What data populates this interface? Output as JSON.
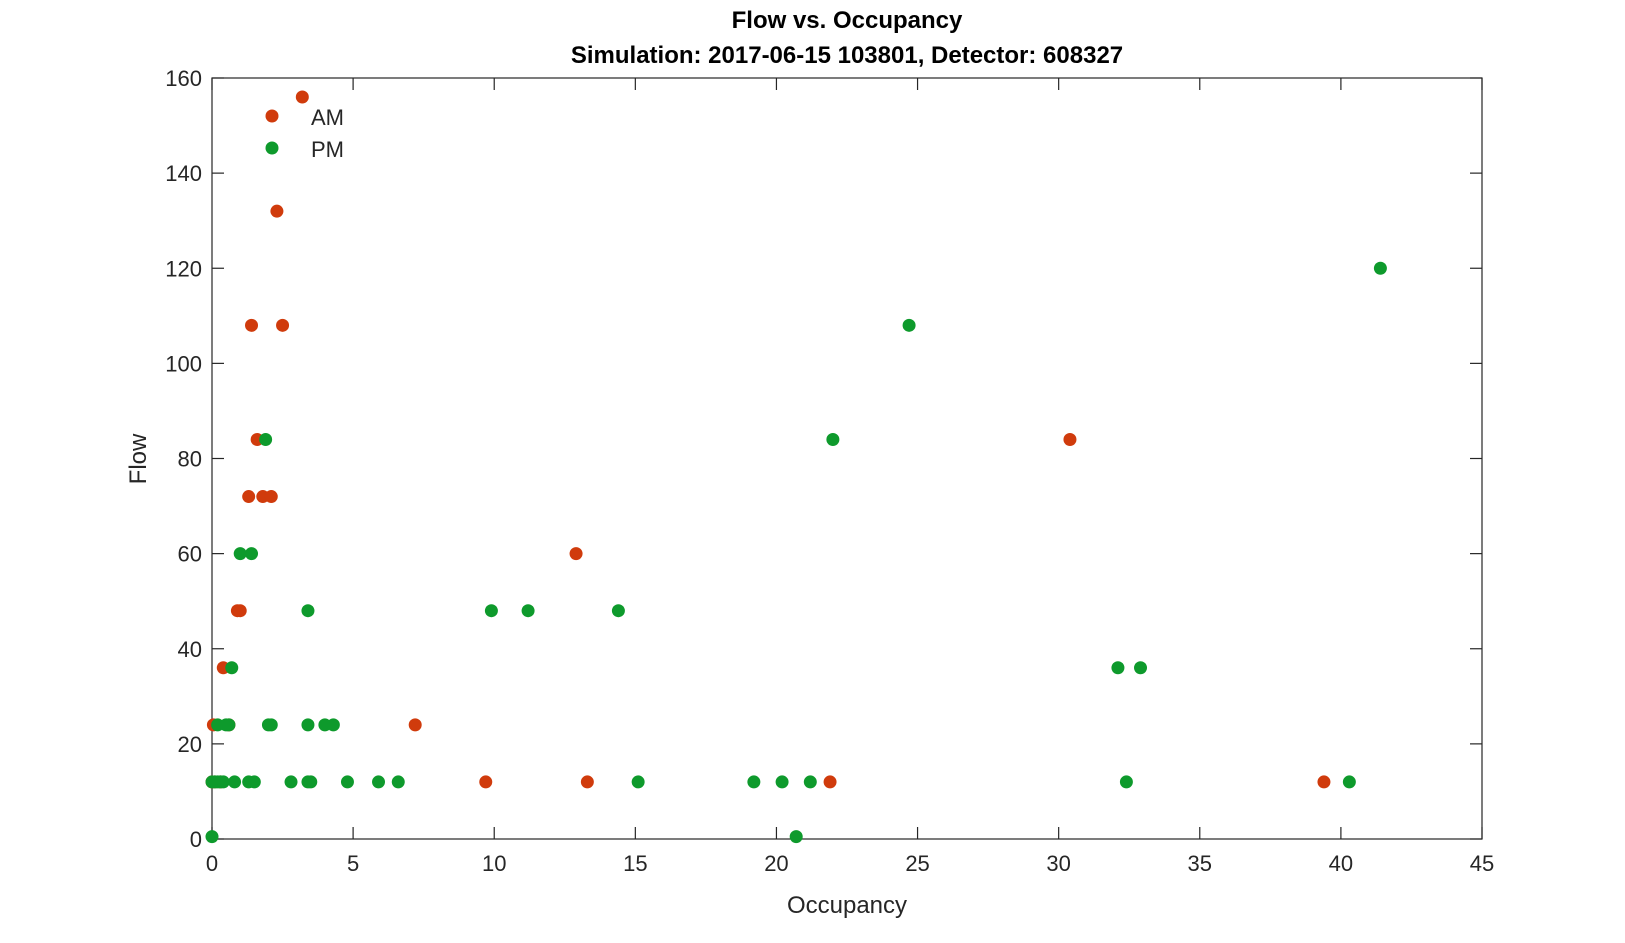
{
  "chart_data": {
    "type": "scatter",
    "title": "Flow vs. Occupancy",
    "subtitle": "Simulation:  2017-06-15 103801,  Detector:  608327",
    "xlabel": "Occupancy",
    "ylabel": "Flow",
    "xlim": [
      0,
      45
    ],
    "ylim": [
      0,
      160
    ],
    "xticks": [
      0,
      5,
      10,
      15,
      20,
      25,
      30,
      35,
      40,
      45
    ],
    "yticks": [
      0,
      20,
      40,
      60,
      80,
      100,
      120,
      140,
      160
    ],
    "xtick_labels": [
      "0",
      "5",
      "10",
      "15",
      "20",
      "25",
      "30",
      "35",
      "40",
      "45"
    ],
    "ytick_labels": [
      "0",
      "20",
      "40",
      "60",
      "80",
      "100",
      "120",
      "140",
      "160"
    ],
    "grid": false,
    "legend_position": "top-left",
    "series": [
      {
        "name": "AM",
        "color": "#d03b0c",
        "points": [
          [
            3.2,
            156
          ],
          [
            2.3,
            132
          ],
          [
            1.4,
            108
          ],
          [
            2.5,
            108
          ],
          [
            1.6,
            84
          ],
          [
            30.4,
            84
          ],
          [
            1.3,
            72
          ],
          [
            1.8,
            72
          ],
          [
            2.1,
            72
          ],
          [
            12.9,
            60
          ],
          [
            0.9,
            48
          ],
          [
            1.0,
            48
          ],
          [
            0.4,
            36
          ],
          [
            0.05,
            24
          ],
          [
            0.6,
            24
          ],
          [
            7.2,
            24
          ],
          [
            0.0,
            12
          ],
          [
            0.1,
            12
          ],
          [
            0.3,
            12
          ],
          [
            9.7,
            12
          ],
          [
            13.3,
            12
          ],
          [
            21.9,
            12
          ],
          [
            39.4,
            12
          ]
        ]
      },
      {
        "name": "PM",
        "color": "#0e9a2c",
        "points": [
          [
            41.4,
            120
          ],
          [
            24.7,
            108
          ],
          [
            1.9,
            84
          ],
          [
            22.0,
            84
          ],
          [
            1.0,
            60
          ],
          [
            1.4,
            60
          ],
          [
            3.4,
            48
          ],
          [
            9.9,
            48
          ],
          [
            11.2,
            48
          ],
          [
            14.4,
            48
          ],
          [
            0.7,
            36
          ],
          [
            32.1,
            36
          ],
          [
            32.9,
            36
          ],
          [
            0.2,
            24
          ],
          [
            0.5,
            24
          ],
          [
            0.6,
            24
          ],
          [
            2.0,
            24
          ],
          [
            2.1,
            24
          ],
          [
            3.4,
            24
          ],
          [
            4.0,
            24
          ],
          [
            4.3,
            24
          ],
          [
            0.0,
            12
          ],
          [
            0.1,
            12
          ],
          [
            0.2,
            12
          ],
          [
            0.3,
            12
          ],
          [
            0.4,
            12
          ],
          [
            0.8,
            12
          ],
          [
            1.3,
            12
          ],
          [
            1.5,
            12
          ],
          [
            2.8,
            12
          ],
          [
            3.4,
            12
          ],
          [
            3.5,
            12
          ],
          [
            4.8,
            12
          ],
          [
            5.9,
            12
          ],
          [
            6.6,
            12
          ],
          [
            15.1,
            12
          ],
          [
            19.2,
            12
          ],
          [
            20.2,
            12
          ],
          [
            21.2,
            12
          ],
          [
            32.4,
            12
          ],
          [
            40.3,
            12
          ],
          [
            0.0,
            0.5
          ],
          [
            20.7,
            0.5
          ]
        ]
      }
    ]
  }
}
